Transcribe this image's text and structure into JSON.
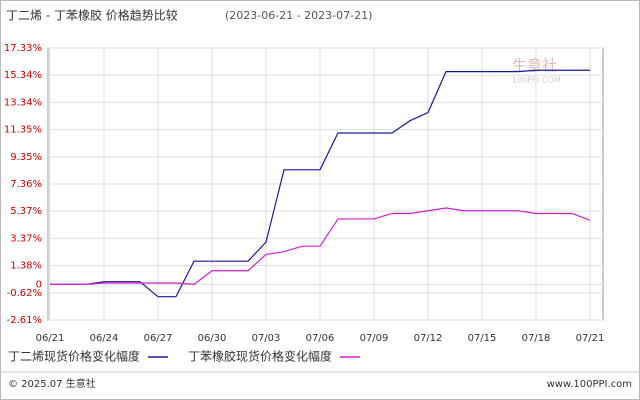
{
  "chart_data": {
    "type": "line",
    "title": "丁二烯 - 丁苯橡胶 价格趋势比较",
    "subtitle": "(2023-06-21 - 2023-07-21)",
    "categories": [
      "06/21",
      null,
      null,
      "06/24",
      null,
      null,
      "06/27",
      null,
      null,
      "06/30",
      null,
      null,
      "07/03",
      null,
      null,
      "07/06",
      null,
      null,
      "07/09",
      null,
      null,
      "07/12",
      null,
      null,
      "07/15",
      null,
      null,
      "07/18",
      null,
      null,
      "07/21"
    ],
    "series": [
      {
        "name": "丁二烯现货价格变化幅度",
        "color": "#1a1aa0",
        "values": [
          0,
          0,
          0,
          0.2,
          0.2,
          0.2,
          -0.9,
          -0.9,
          1.7,
          1.7,
          1.7,
          1.7,
          3.1,
          8.4,
          8.4,
          8.4,
          11.1,
          11.1,
          11.1,
          11.1,
          12.0,
          12.6,
          15.6,
          15.6,
          15.6,
          15.6,
          15.6,
          15.7,
          15.7,
          15.7,
          15.7
        ]
      },
      {
        "name": "丁苯橡胶现货价格变化幅度",
        "color": "#d020d0",
        "values": [
          0,
          0,
          0,
          0.1,
          0.1,
          0.1,
          0.1,
          0.1,
          0,
          1.0,
          1.0,
          1.0,
          2.2,
          2.4,
          2.8,
          2.8,
          4.8,
          4.8,
          4.8,
          5.2,
          5.2,
          5.4,
          5.6,
          5.4,
          5.4,
          5.4,
          5.4,
          5.2,
          5.2,
          5.2,
          4.7
        ]
      }
    ],
    "ylim": [
      -2.61,
      17.33
    ],
    "yticks": [
      {
        "value": -2.61,
        "label": "-2.61%"
      },
      {
        "value": -0.62,
        "label": "-0.62%"
      },
      0,
      {
        "value": 1.38,
        "label": "1.38%"
      },
      {
        "value": 3.37,
        "label": "3.37%"
      },
      {
        "value": 5.37,
        "label": "5.37%"
      },
      {
        "value": 7.36,
        "label": "7.36%"
      },
      {
        "value": 9.35,
        "label": "9.35%"
      },
      {
        "value": 11.35,
        "label": "11.35%"
      },
      {
        "value": 13.34,
        "label": "13.34%"
      },
      {
        "value": 15.34,
        "label": "15.34%"
      },
      {
        "value": 17.33,
        "label": "17.33%"
      }
    ],
    "grid": true
  },
  "watermark": {
    "name": "生意社",
    "site": "100PPI.COM"
  },
  "footer": {
    "copyright": "© 2025.07 生意社",
    "url": "www.100PPI.com"
  }
}
